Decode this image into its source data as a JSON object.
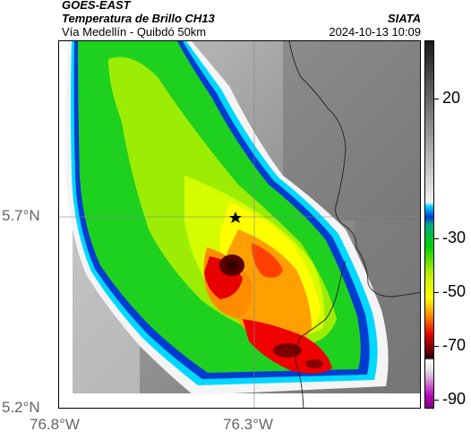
{
  "header": {
    "satellite": "GOES-EAST",
    "product": "Temperatura de Brillo CH13",
    "region": "Vía Medellín - Quibdó 50km",
    "org": "SIATA",
    "datetime": "2024-10-13 10:09"
  },
  "map": {
    "lat_ticks": [
      "5.7°N",
      "5.2°N"
    ],
    "lon_ticks": [
      "76.8°W",
      "76.3°W"
    ],
    "marker": "star"
  },
  "colorbar": {
    "labels": [
      "20",
      "-30",
      "-50",
      "-70",
      "-90"
    ],
    "colors": {
      "gray_top": "#1a1a1a",
      "gray_bottom": "#f2f2f2",
      "cyan": "#00d8ff",
      "blue": "#003cd2",
      "green": "#00d200",
      "yellow": "#ffff00",
      "orange": "#ff8c00",
      "red": "#e60000",
      "dark_red": "#5a0000",
      "magenta": "#b400b4"
    }
  }
}
